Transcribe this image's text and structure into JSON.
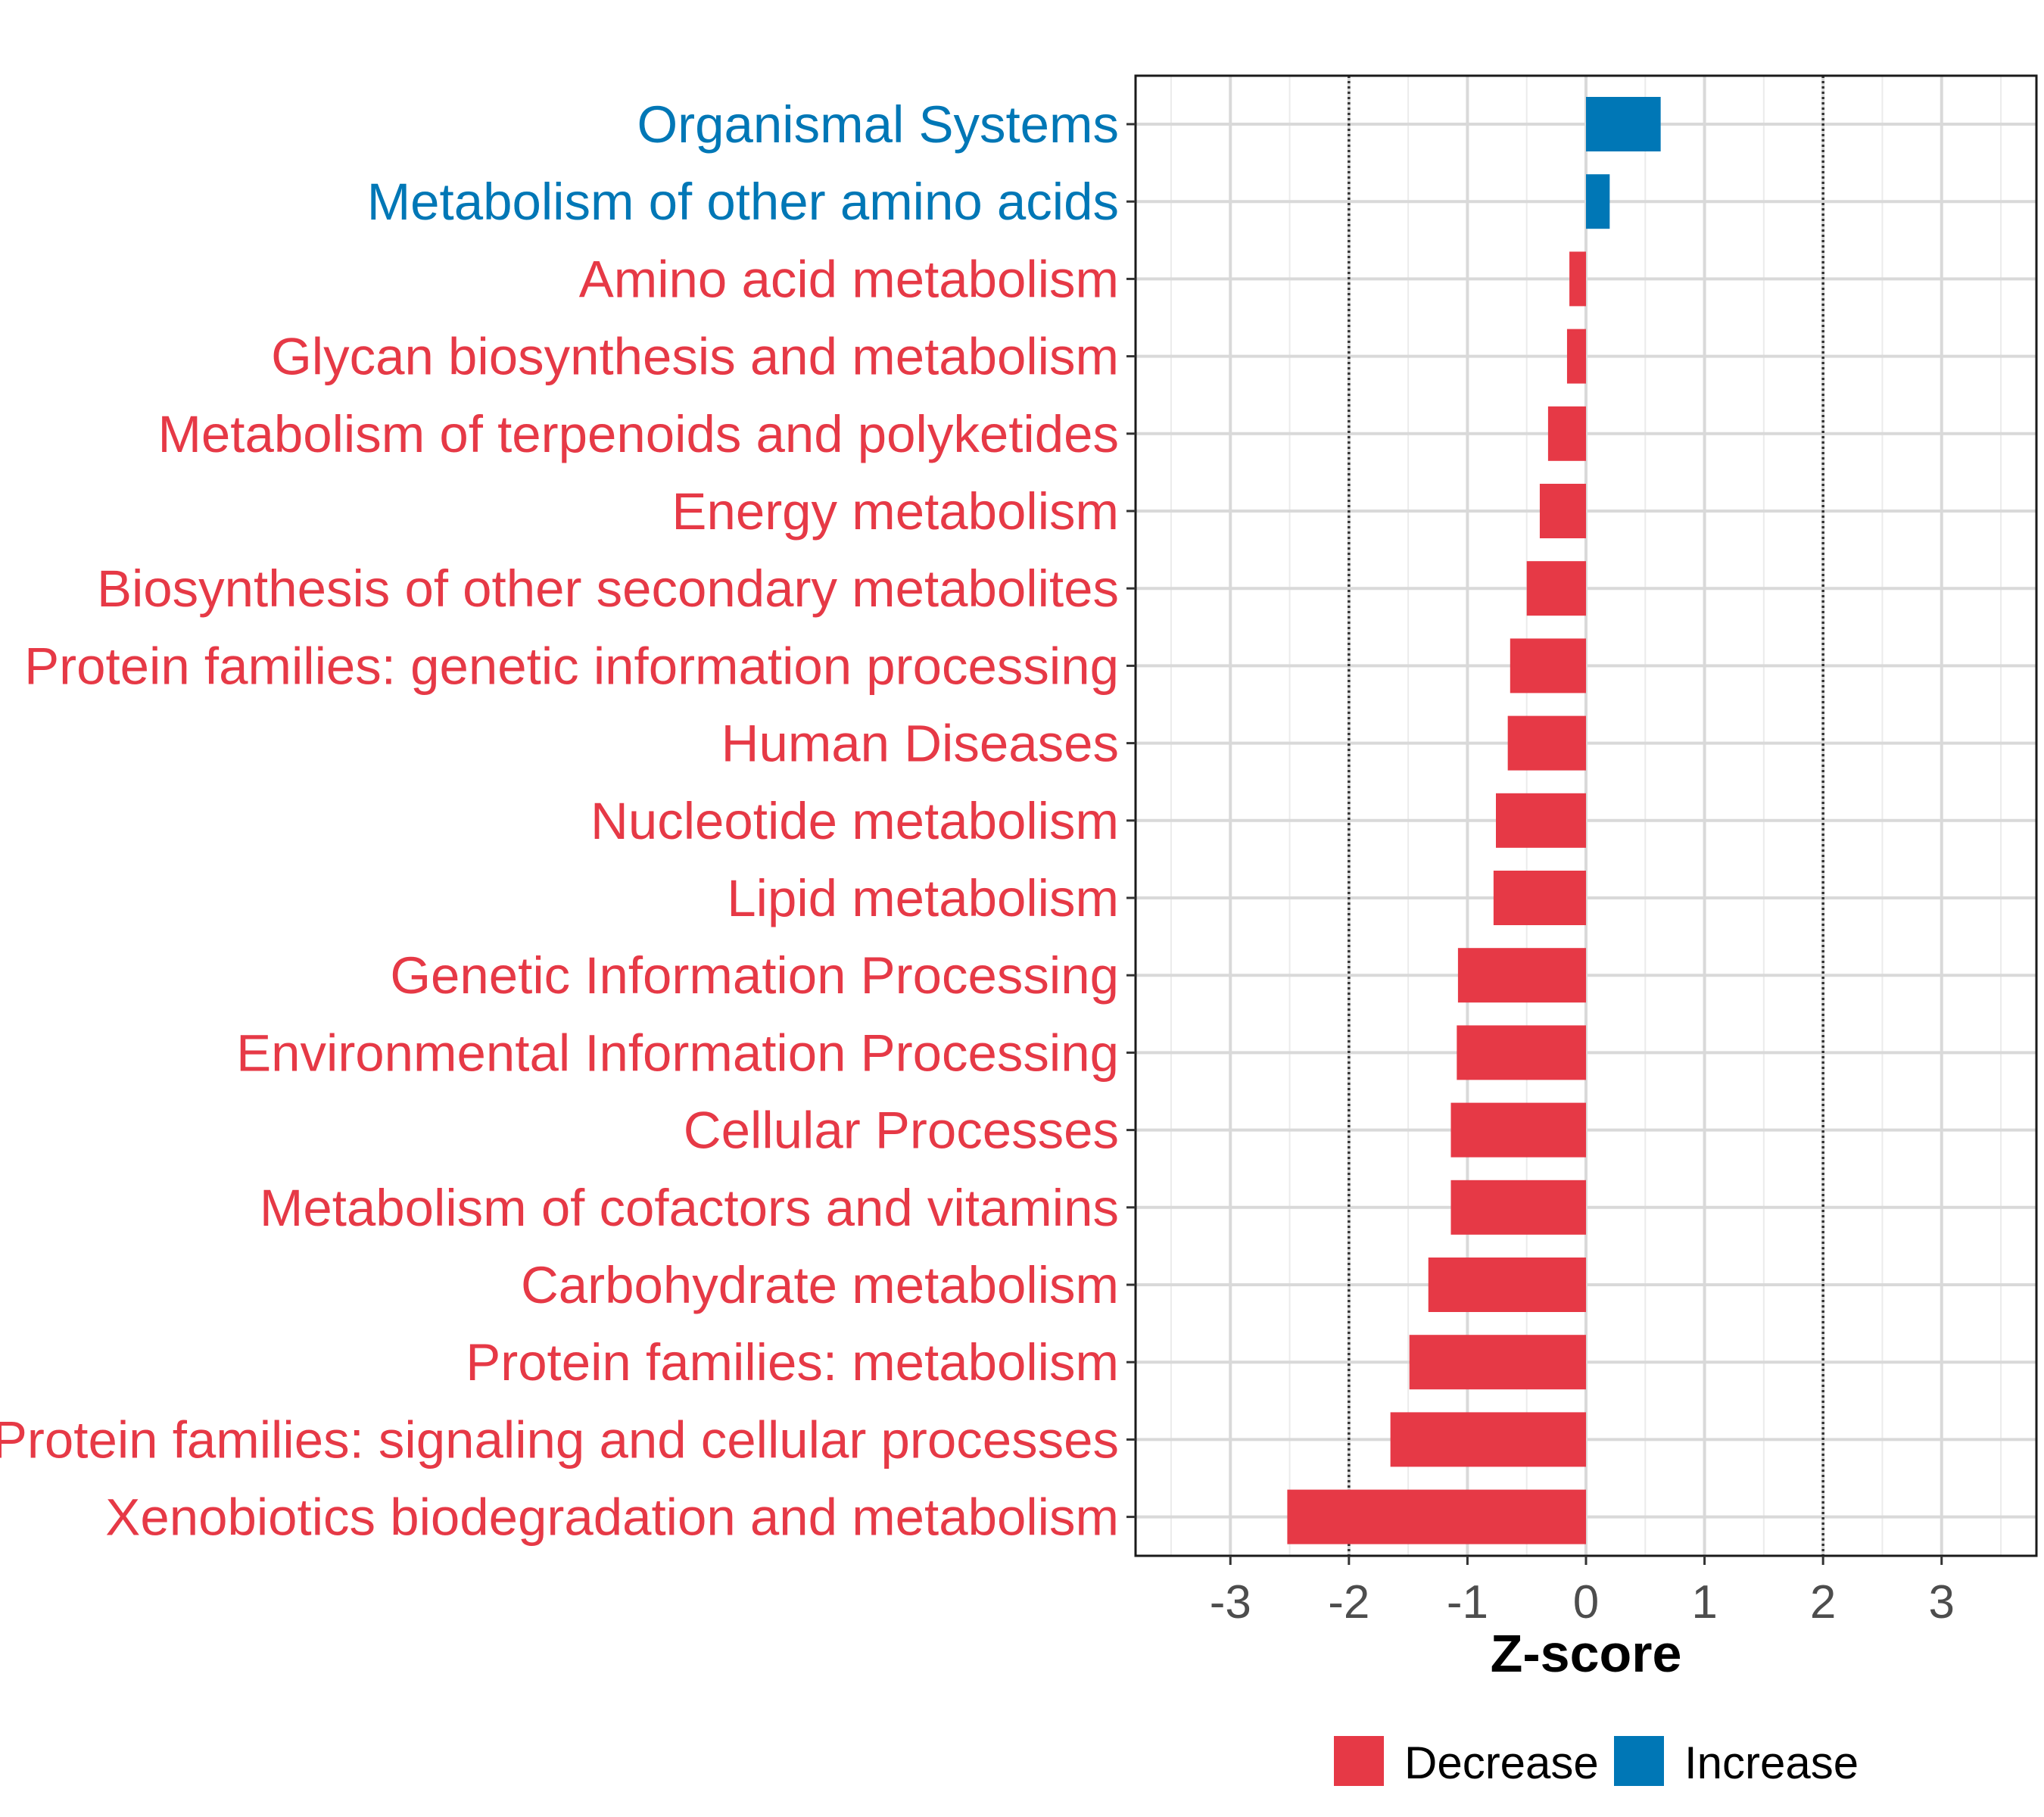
{
  "chart_data": {
    "type": "bar",
    "orientation": "horizontal",
    "title": "",
    "xlabel": "Z-score",
    "ylabel": "",
    "xlim": [
      -3.8,
      3.8
    ],
    "xticks": [
      -3,
      -2,
      -1,
      0,
      1,
      2,
      3
    ],
    "xtick_labels": [
      "-3",
      "-2",
      "-1",
      "0",
      "1",
      "2",
      "3"
    ],
    "reference_lines": [
      -2,
      2
    ],
    "grid": true,
    "categories": [
      "Organismal Systems",
      "Metabolism of other amino acids",
      "Amino acid metabolism",
      "Glycan biosynthesis and metabolism",
      "Metabolism of terpenoids and polyketides",
      "Energy metabolism",
      "Biosynthesis of other secondary metabolites",
      "Protein families: genetic information processing",
      "Human Diseases",
      "Nucleotide metabolism",
      "Lipid metabolism",
      "Genetic Information Processing",
      "Environmental Information Processing",
      "Cellular Processes",
      "Metabolism of cofactors and vitamins",
      "Carbohydrate metabolism",
      "Protein families: metabolism",
      "Protein families: signaling and cellular processes",
      "Xenobiotics biodegradation and metabolism"
    ],
    "values": [
      0.63,
      0.2,
      -0.14,
      -0.16,
      -0.32,
      -0.39,
      -0.5,
      -0.64,
      -0.66,
      -0.76,
      -0.78,
      -1.08,
      -1.09,
      -1.14,
      -1.14,
      -1.33,
      -1.49,
      -1.65,
      -2.52
    ],
    "groups": [
      "Increase",
      "Increase",
      "Decrease",
      "Decrease",
      "Decrease",
      "Decrease",
      "Decrease",
      "Decrease",
      "Decrease",
      "Decrease",
      "Decrease",
      "Decrease",
      "Decrease",
      "Decrease",
      "Decrease",
      "Decrease",
      "Decrease",
      "Decrease",
      "Decrease"
    ],
    "legend": {
      "position": "bottom",
      "entries": [
        {
          "label": "Decrease",
          "color": "#E63946"
        },
        {
          "label": "Increase",
          "color": "#0077B6"
        }
      ]
    },
    "colors": {
      "Decrease": "#E63946",
      "Increase": "#0077B6"
    }
  }
}
